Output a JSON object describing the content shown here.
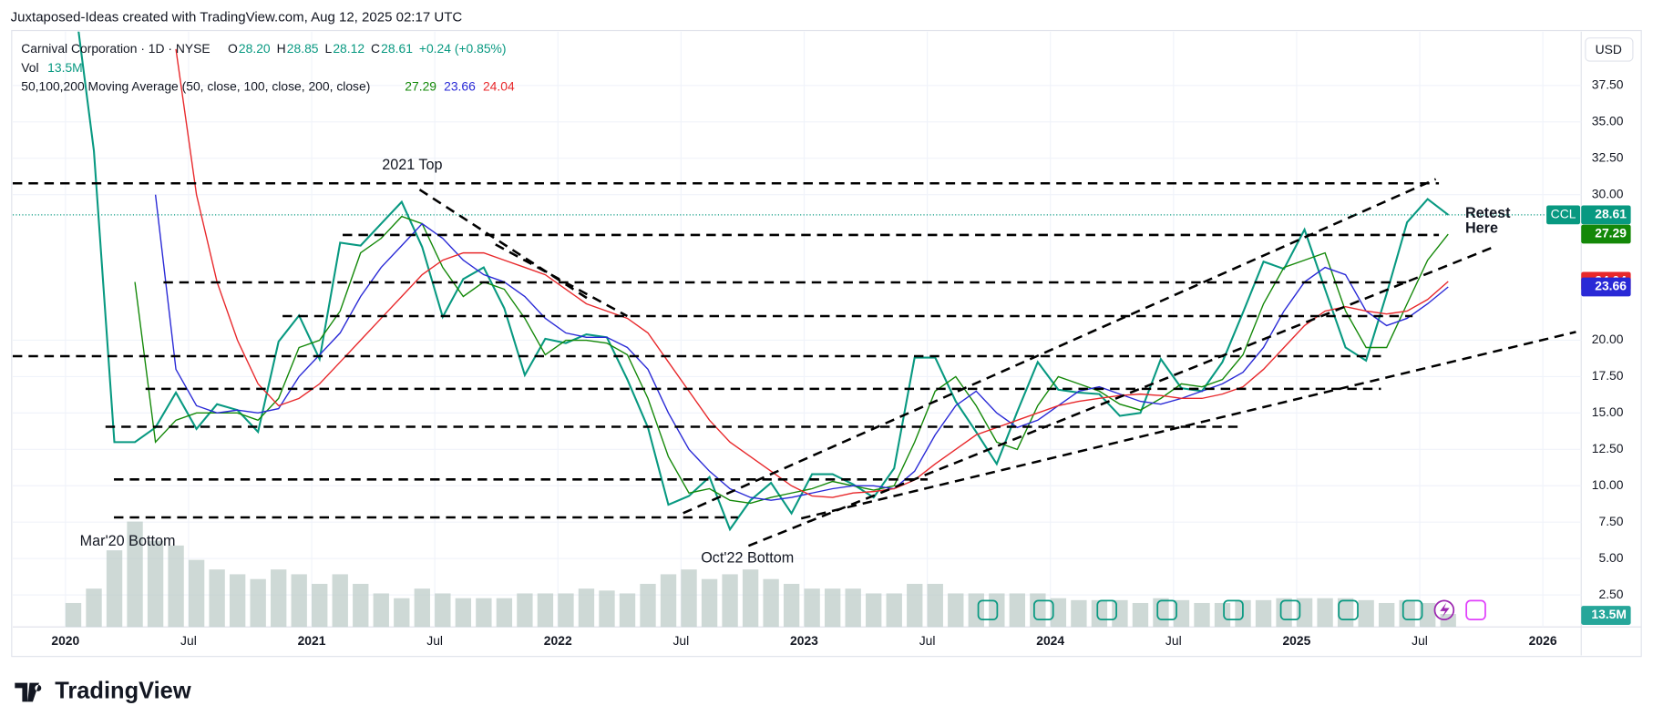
{
  "header": {
    "credit": "Juxtaposed-Ideas created with TradingView.com, Aug 12, 2025 02:17 UTC",
    "symbol": "Carnival Corporation · 1D · NYSE",
    "ohlc": [
      {
        "label": "O",
        "value": "28.20"
      },
      {
        "label": "H",
        "value": "28.85"
      },
      {
        "label": "L",
        "value": "28.12"
      },
      {
        "label": "C",
        "value": "28.61"
      }
    ],
    "change": "+0.24 (+0.85%)",
    "vol_label": "Vol",
    "vol_value": "13.5M",
    "ma_label": "50,100,200 Moving Average (50, close, 100, close, 200, close)",
    "currency": "USD",
    "ticker": "CCL"
  },
  "footer": {
    "logo": "TradingView"
  },
  "chart_data": {
    "type": "line",
    "annotations": {
      "top": "2021 Top",
      "mar20": "Mar'20 Bottom",
      "oct22": "Oct'22 Bottom",
      "retest1": "Retest",
      "retest2": "Here"
    },
    "x": [
      "2020-01",
      "2020-02",
      "2020-03",
      "2020-04",
      "2020-05",
      "2020-06",
      "2020-07",
      "2020-08",
      "2020-09",
      "2020-10",
      "2020-11",
      "2020-12",
      "2021-01",
      "2021-02",
      "2021-03",
      "2021-04",
      "2021-05",
      "2021-06",
      "2021-07",
      "2021-08",
      "2021-09",
      "2021-10",
      "2021-11",
      "2021-12",
      "2022-01",
      "2022-02",
      "2022-03",
      "2022-04",
      "2022-05",
      "2022-06",
      "2022-07",
      "2022-08",
      "2022-09",
      "2022-10",
      "2022-11",
      "2022-12",
      "2023-01",
      "2023-02",
      "2023-03",
      "2023-04",
      "2023-05",
      "2023-06",
      "2023-07",
      "2023-08",
      "2023-09",
      "2023-10",
      "2023-11",
      "2023-12",
      "2024-01",
      "2024-02",
      "2024-03",
      "2024-04",
      "2024-05",
      "2024-06",
      "2024-07",
      "2024-08",
      "2024-09",
      "2024-10",
      "2024-11",
      "2024-12",
      "2025-01",
      "2025-02",
      "2025-03",
      "2025-04",
      "2025-05",
      "2025-06",
      "2025-07",
      "2025-08"
    ],
    "series": [
      {
        "name": "CCL",
        "color": "#089981",
        "values": [
          44,
          33,
          13,
          13,
          14,
          16.4,
          13.9,
          15.6,
          15.2,
          13.7,
          19.9,
          21.7,
          18.7,
          26.7,
          26.5,
          28,
          29.5,
          26.4,
          21.6,
          24.2,
          25,
          22.2,
          17.6,
          20.1,
          19.8,
          20.4,
          20.2,
          17.3,
          14,
          8.7,
          9.3,
          10.6,
          7,
          9,
          10.2,
          8.1,
          10.8,
          10.8,
          10.1,
          9.2,
          11.2,
          18.8,
          18.8,
          15.8,
          13.7,
          11.5,
          15.1,
          18.5,
          16.6,
          16.4,
          16.3,
          14.8,
          15,
          18.7,
          16.7,
          16.5,
          18.5,
          21.9,
          25.4,
          24.9,
          27.6,
          23.5,
          19.5,
          18.6,
          23.2,
          28.1,
          29.7,
          28.61
        ]
      },
      {
        "color": "#138808",
        "values": [
          null,
          null,
          null,
          24,
          13,
          14.5,
          15,
          15,
          15,
          14.5,
          16,
          19.5,
          20,
          22,
          26,
          27,
          28.5,
          28,
          25,
          23,
          24,
          23.5,
          21.5,
          19,
          20,
          20,
          19.8,
          19,
          16,
          12,
          9.5,
          9.8,
          9,
          8.8,
          9.2,
          9.5,
          9.8,
          10.3,
          10,
          9.7,
          10,
          13,
          16.5,
          17.5,
          15.5,
          13,
          12.5,
          15.5,
          17.5,
          17,
          16.5,
          15.6,
          15.2,
          16,
          17,
          16.8,
          17.3,
          19,
          22.5,
          25,
          25.5,
          26,
          22,
          19.5,
          19.5,
          22.5,
          25.5,
          27.29
        ]
      },
      {
        "color": "#2929d6",
        "values": [
          null,
          null,
          null,
          null,
          30,
          18,
          15.5,
          15,
          15.2,
          15,
          15.3,
          17.5,
          19,
          20.5,
          23,
          25,
          26.5,
          28,
          27,
          25.5,
          24.5,
          24,
          23,
          21.5,
          20.5,
          20.2,
          20.2,
          19.5,
          18,
          15,
          12.5,
          11,
          9.8,
          9.2,
          9,
          9.2,
          9.5,
          9.8,
          10,
          10,
          9.8,
          11,
          13.5,
          15.5,
          16.5,
          15,
          14,
          14.5,
          15.5,
          16.5,
          16.8,
          16.3,
          15.8,
          15.6,
          16,
          16.5,
          17,
          17.8,
          19.5,
          22,
          24,
          25,
          24.5,
          22,
          21,
          21.5,
          22.5,
          23.66
        ]
      },
      {
        "color": "#e8282b",
        "values": [
          null,
          null,
          null,
          null,
          null,
          40,
          30,
          24,
          20,
          17,
          15.5,
          16,
          17,
          18.5,
          20,
          21.5,
          23,
          24.5,
          25.5,
          26,
          26,
          25.5,
          25,
          24.5,
          23.5,
          22.5,
          22,
          21.5,
          20.5,
          18.5,
          16.5,
          14.5,
          13,
          12,
          11,
          10,
          9.3,
          9.2,
          9.5,
          9.6,
          9.8,
          10.4,
          11.5,
          12.5,
          13.5,
          14,
          14.5,
          15,
          15.5,
          15.8,
          16,
          16.2,
          16.3,
          16.2,
          16,
          16,
          16.3,
          16.8,
          18,
          19.5,
          21,
          22,
          22.3,
          22,
          21.8,
          22,
          22.8,
          24.04
        ]
      }
    ],
    "volume": {
      "color": "#b9c9c4",
      "values": [
        25,
        40,
        80,
        110,
        90,
        85,
        70,
        60,
        55,
        50,
        60,
        55,
        45,
        55,
        45,
        35,
        30,
        40,
        35,
        30,
        30,
        30,
        35,
        35,
        35,
        40,
        38,
        35,
        45,
        55,
        60,
        50,
        55,
        60,
        50,
        45,
        40,
        40,
        40,
        35,
        35,
        45,
        45,
        35,
        35,
        35,
        35,
        35,
        30,
        28,
        28,
        28,
        25,
        30,
        28,
        25,
        25,
        28,
        28,
        30,
        30,
        30,
        30,
        28,
        25,
        28,
        25,
        13.5
      ],
      "last_label": "13.5M"
    },
    "volume_ylim": [
      0,
      110
    ],
    "ylim": [
      0.3,
      41.2
    ],
    "yticks": [
      {
        "value": 2.5,
        "label": "2.50"
      },
      {
        "value": 5,
        "label": "5.00"
      },
      {
        "value": 7.5,
        "label": "7.50"
      },
      {
        "value": 10,
        "label": "10.00"
      },
      {
        "value": 12.5,
        "label": "12.50"
      },
      {
        "value": 15,
        "label": "15.00"
      },
      {
        "value": 17.5,
        "label": "17.50"
      },
      {
        "value": 20,
        "label": "20.00"
      },
      {
        "value": 30,
        "label": "30.00"
      },
      {
        "value": 32.5,
        "label": "32.50"
      },
      {
        "value": 35,
        "label": "35.00"
      },
      {
        "value": 37.5,
        "label": "37.50"
      }
    ],
    "xticks": [
      {
        "value": "2020-01",
        "label": "2020"
      },
      {
        "value": "2020-07",
        "label": "Jul"
      },
      {
        "value": "2021-01",
        "label": "2021"
      },
      {
        "value": "2021-07",
        "label": "Jul"
      },
      {
        "value": "2022-01",
        "label": "2022"
      },
      {
        "value": "2022-07",
        "label": "Jul"
      },
      {
        "value": "2023-01",
        "label": "2023"
      },
      {
        "value": "2023-07",
        "label": "Jul"
      },
      {
        "value": "2024-01",
        "label": "2024"
      },
      {
        "value": "2024-07",
        "label": "Jul"
      },
      {
        "value": "2025-01",
        "label": "2025"
      },
      {
        "value": "2025-07",
        "label": "Jul"
      },
      {
        "value": "2026-01",
        "label": "2026"
      }
    ],
    "grid": true
  }
}
